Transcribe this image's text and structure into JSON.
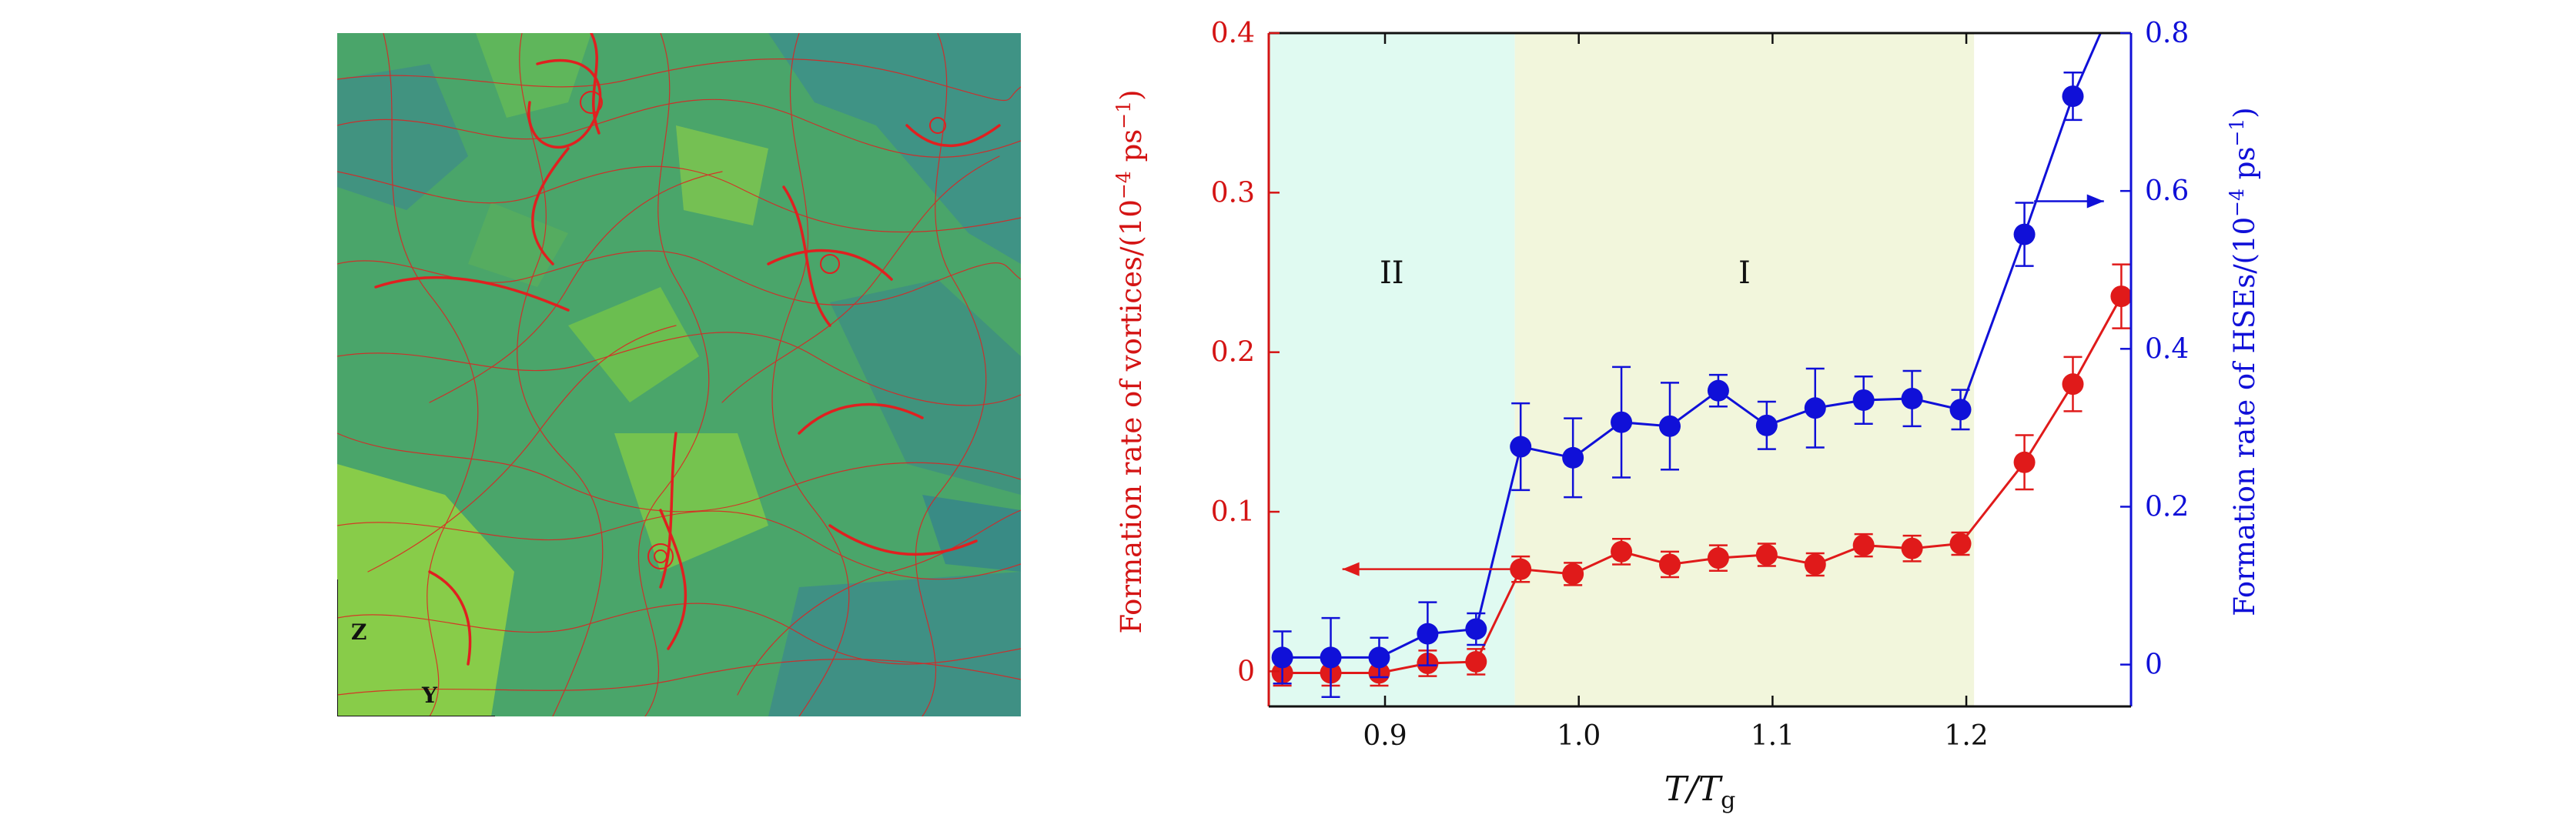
{
  "simulation_image": {
    "axis_labels": [
      "Z",
      "Y"
    ],
    "colors": {
      "background": "#4aa56a",
      "streamlines": "#e02020"
    }
  },
  "chart_data": {
    "type": "line",
    "xlabel_main": "T/T",
    "xlabel_sub": "g",
    "ylabel_left": "Formation rate of vortices/(10",
    "ylabel_left_exp": "−4",
    "ylabel_left_unit": " ps",
    "ylabel_left_unit_exp": "−1",
    "ylabel_left_close": ")",
    "ylabel_right": "Formation rate of HSEs/(10",
    "ylabel_right_exp": "−4",
    "ylabel_right_unit": " ps",
    "ylabel_right_unit_exp": "−1",
    "ylabel_right_close": ")",
    "xlim": [
      0.84,
      1.285
    ],
    "ylim_left": [
      -0.022,
      0.4
    ],
    "ylim_right": [
      -0.053,
      0.8
    ],
    "x_ticks": [
      "0.9",
      "1.0",
      "1.1",
      "1.2"
    ],
    "x_tick_values": [
      0.9,
      1.0,
      1.1,
      1.2
    ],
    "y_left_ticks": [
      "0",
      "0.1",
      "0.2",
      "0.3",
      "0.4"
    ],
    "y_left_tick_values": [
      0,
      0.1,
      0.2,
      0.3,
      0.4
    ],
    "y_right_ticks": [
      "0",
      "0.2",
      "0.4",
      "0.6",
      "0.8"
    ],
    "y_right_tick_values": [
      0,
      0.2,
      0.4,
      0.6,
      0.8
    ],
    "regions": [
      {
        "label": "II",
        "x0": 0.84,
        "x1": 0.967,
        "color": "#e0faf1"
      },
      {
        "label": "I",
        "x0": 0.967,
        "x1": 1.204,
        "color": "#f2f6dc"
      }
    ],
    "region_label_y": 0.25,
    "series": [
      {
        "axis": "left",
        "color": "#e01a1a",
        "x": [
          0.847,
          0.872,
          0.897,
          0.922,
          0.947,
          0.97,
          0.997,
          1.022,
          1.047,
          1.072,
          1.097,
          1.122,
          1.147,
          1.172,
          1.197,
          1.23,
          1.255,
          1.28
        ],
        "y": [
          -0.001,
          -0.001,
          -0.001,
          0.005,
          0.006,
          0.064,
          0.061,
          0.075,
          0.067,
          0.071,
          0.073,
          0.067,
          0.079,
          0.077,
          0.08,
          0.131,
          0.18,
          0.235
        ],
        "err": [
          0.008,
          0.008,
          0.008,
          0.008,
          0.008,
          0.008,
          0.007,
          0.008,
          0.008,
          0.008,
          0.007,
          0.007,
          0.007,
          0.008,
          0.007,
          0.017,
          0.017,
          0.02
        ]
      },
      {
        "axis": "right",
        "color": "#1010d8",
        "x": [
          0.847,
          0.872,
          0.897,
          0.922,
          0.947,
          0.97,
          0.997,
          1.022,
          1.047,
          1.072,
          1.097,
          1.122,
          1.147,
          1.172,
          1.197,
          1.23,
          1.255,
          1.28
        ],
        "y": [
          0.009,
          0.009,
          0.009,
          0.039,
          0.045,
          0.276,
          0.262,
          0.307,
          0.302,
          0.347,
          0.303,
          0.325,
          0.335,
          0.337,
          0.323,
          0.545,
          0.72,
          0.86
        ],
        "err": [
          0.033,
          0.05,
          0.025,
          0.04,
          0.02,
          0.055,
          0.05,
          0.07,
          0.055,
          0.02,
          0.03,
          0.05,
          0.03,
          0.035,
          0.025,
          0.04,
          0.03,
          0.0
        ]
      }
    ],
    "annotations": [
      {
        "type": "arrow",
        "axis": "left",
        "color": "#e01a1a",
        "x_from": 0.967,
        "x_to": 0.878,
        "y": 0.064
      },
      {
        "type": "arrow",
        "axis": "right",
        "color": "#1010d8",
        "x_from": 1.235,
        "x_to": 1.271,
        "y": 0.587
      }
    ]
  }
}
